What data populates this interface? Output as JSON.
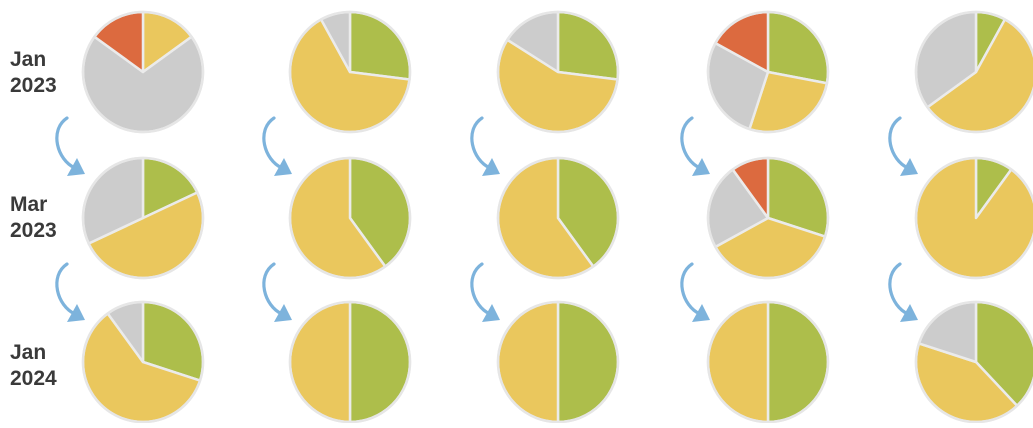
{
  "colors": {
    "green": "#adbe4b",
    "yellow": "#eac75d",
    "gray": "#cccccc",
    "orange": "#dc6a3f",
    "label": "#3a3a3a",
    "arrow": "#7db3dc"
  },
  "chart_data": {
    "type": "pie",
    "title": "",
    "rows": [
      {
        "label_line1": "Jan",
        "label_line2": "2023"
      },
      {
        "label_line1": "Mar",
        "label_line2": "2023"
      },
      {
        "label_line1": "Jan",
        "label_line2": "2024"
      }
    ],
    "columns": 5,
    "pies": [
      [
        {
          "slices": [
            {
              "color": "yellow",
              "value": 15
            },
            {
              "color": "gray",
              "value": 70
            },
            {
              "color": "orange",
              "value": 15
            }
          ]
        },
        {
          "slices": [
            {
              "color": "green",
              "value": 27
            },
            {
              "color": "yellow",
              "value": 65
            },
            {
              "color": "gray",
              "value": 8
            }
          ]
        },
        {
          "slices": [
            {
              "color": "green",
              "value": 27
            },
            {
              "color": "yellow",
              "value": 57
            },
            {
              "color": "gray",
              "value": 16
            }
          ]
        },
        {
          "slices": [
            {
              "color": "green",
              "value": 28
            },
            {
              "color": "yellow",
              "value": 27
            },
            {
              "color": "gray",
              "value": 28
            },
            {
              "color": "orange",
              "value": 17
            }
          ]
        },
        {
          "slices": [
            {
              "color": "green",
              "value": 8
            },
            {
              "color": "yellow",
              "value": 57
            },
            {
              "color": "gray",
              "value": 35
            }
          ]
        }
      ],
      [
        {
          "slices": [
            {
              "color": "green",
              "value": 18
            },
            {
              "color": "yellow",
              "value": 50
            },
            {
              "color": "gray",
              "value": 32
            }
          ]
        },
        {
          "slices": [
            {
              "color": "green",
              "value": 40
            },
            {
              "color": "yellow",
              "value": 60
            }
          ]
        },
        {
          "slices": [
            {
              "color": "green",
              "value": 40
            },
            {
              "color": "yellow",
              "value": 60
            }
          ]
        },
        {
          "slices": [
            {
              "color": "green",
              "value": 30
            },
            {
              "color": "yellow",
              "value": 37
            },
            {
              "color": "gray",
              "value": 23
            },
            {
              "color": "orange",
              "value": 10
            }
          ]
        },
        {
          "slices": [
            {
              "color": "green",
              "value": 10
            },
            {
              "color": "yellow",
              "value": 90
            }
          ]
        }
      ],
      [
        {
          "slices": [
            {
              "color": "green",
              "value": 30
            },
            {
              "color": "yellow",
              "value": 60
            },
            {
              "color": "gray",
              "value": 10
            }
          ]
        },
        {
          "slices": [
            {
              "color": "green",
              "value": 50
            },
            {
              "color": "yellow",
              "value": 50
            }
          ]
        },
        {
          "slices": [
            {
              "color": "green",
              "value": 50
            },
            {
              "color": "yellow",
              "value": 50
            }
          ]
        },
        {
          "slices": [
            {
              "color": "green",
              "value": 50
            },
            {
              "color": "yellow",
              "value": 50
            }
          ]
        },
        {
          "slices": [
            {
              "color": "green",
              "value": 38
            },
            {
              "color": "yellow",
              "value": 42
            },
            {
              "color": "gray",
              "value": 20
            }
          ]
        }
      ]
    ]
  }
}
